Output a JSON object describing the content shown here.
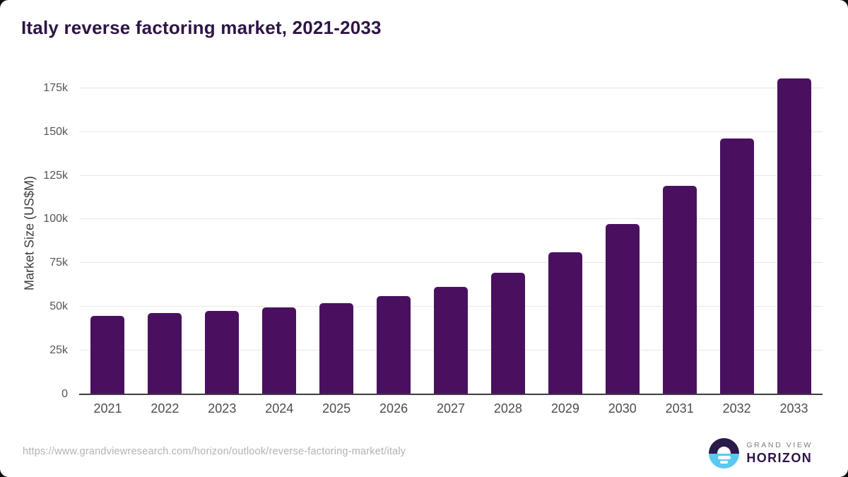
{
  "page": {
    "title": "Italy reverse factoring market, 2021-2033"
  },
  "chart_data": {
    "type": "bar",
    "title": "Italy reverse factoring market, 2021-2033",
    "categories": [
      "2021",
      "2022",
      "2023",
      "2024",
      "2025",
      "2026",
      "2027",
      "2028",
      "2029",
      "2030",
      "2031",
      "2032",
      "2033"
    ],
    "values": [
      45000,
      46400,
      47700,
      49600,
      52000,
      56100,
      61500,
      69600,
      81200,
      97400,
      119300,
      146200,
      180700
    ],
    "xlabel": "",
    "ylabel": "Market Size (US$M)",
    "ylim": [
      0,
      185000
    ],
    "yticks": [
      {
        "value": 0,
        "label": "0"
      },
      {
        "value": 25000,
        "label": "25k"
      },
      {
        "value": 50000,
        "label": "50k"
      },
      {
        "value": 75000,
        "label": "75k"
      },
      {
        "value": 100000,
        "label": "100k"
      },
      {
        "value": 125000,
        "label": "125k"
      },
      {
        "value": 150000,
        "label": "150k"
      },
      {
        "value": 175000,
        "label": "175k"
      }
    ],
    "grid": true,
    "legend": false,
    "bar_color": "#4a1060"
  },
  "footer": {
    "source_url": "https://www.grandviewresearch.com/horizon/outlook/reverse-factoring-market/italy",
    "logo": {
      "brand_top": "GRAND VIEW",
      "brand_bottom": "HORIZON"
    }
  },
  "colors": {
    "title": "#2d1545",
    "bar": "#4a1060",
    "gridline": "#e7e7e7",
    "axis_line": "#3d3d3d",
    "tick_label": "#565656",
    "x_label": "#4c4c4c",
    "url_text": "#b2b2b2",
    "logo_sky": "#2b1b49",
    "logo_sea": "#5cc8f2"
  }
}
